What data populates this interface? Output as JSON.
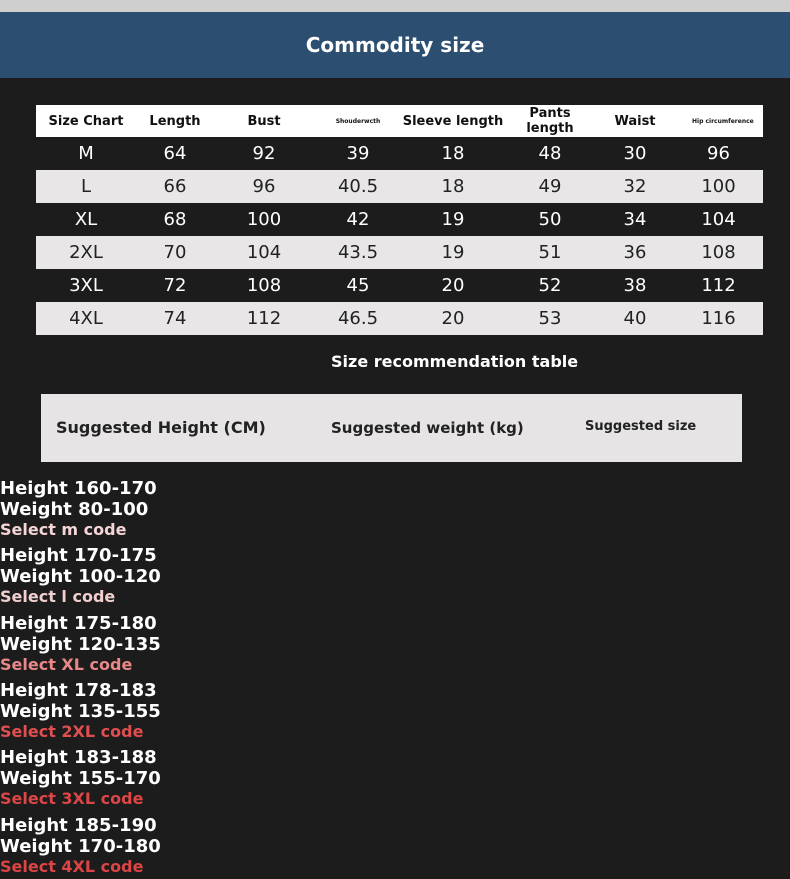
{
  "title": "Commodity size",
  "size_chart": {
    "headers": [
      "Size Chart",
      "Length",
      "Bust",
      "Shouderwcth",
      "Sleeve length",
      "Pants length",
      "Waist",
      "Hip circumference"
    ],
    "rows": [
      [
        "M",
        "64",
        "92",
        "39",
        "18",
        "48",
        "30",
        "96"
      ],
      [
        "L",
        "66",
        "96",
        "40.5",
        "18",
        "49",
        "32",
        "100"
      ],
      [
        "XL",
        "68",
        "100",
        "42",
        "19",
        "50",
        "34",
        "104"
      ],
      [
        "2XL",
        "70",
        "104",
        "43.5",
        "19",
        "51",
        "36",
        "108"
      ],
      [
        "3XL",
        "72",
        "108",
        "45",
        "20",
        "52",
        "38",
        "112"
      ],
      [
        "4XL",
        "74",
        "112",
        "46.5",
        "20",
        "53",
        "40",
        "116"
      ]
    ]
  },
  "recommendation": {
    "title": "Size recommendation table",
    "headers": [
      "Suggested Height (CM)",
      "Suggested weight (kg)",
      "Suggested size"
    ],
    "rows": [
      {
        "height": "Height 160-170",
        "weight": "Weight 80-100",
        "size": "Select m code",
        "color": "#f5d5d5"
      },
      {
        "height": "Height 170-175",
        "weight": "Weight 100-120",
        "size": "Select l code",
        "color": "#f2cfcf"
      },
      {
        "height": "Height 175-180",
        "weight": "Weight 120-135",
        "size": "Select XL code",
        "color": "#e88888"
      },
      {
        "height": "Height 178-183",
        "weight": "Weight 135-155",
        "size": "Select 2XL code",
        "color": "#e04f4f"
      },
      {
        "height": "Height 183-188",
        "weight": "Weight 155-170",
        "size": "Select 3XL code",
        "color": "#dd4646"
      },
      {
        "height": "Height 185-190",
        "weight": "Weight 170-180",
        "size": "Select 4XL code",
        "color": "#dd4444"
      }
    ]
  },
  "colors": {
    "banner": "#2c4e70",
    "background": "#1c1c1c"
  }
}
